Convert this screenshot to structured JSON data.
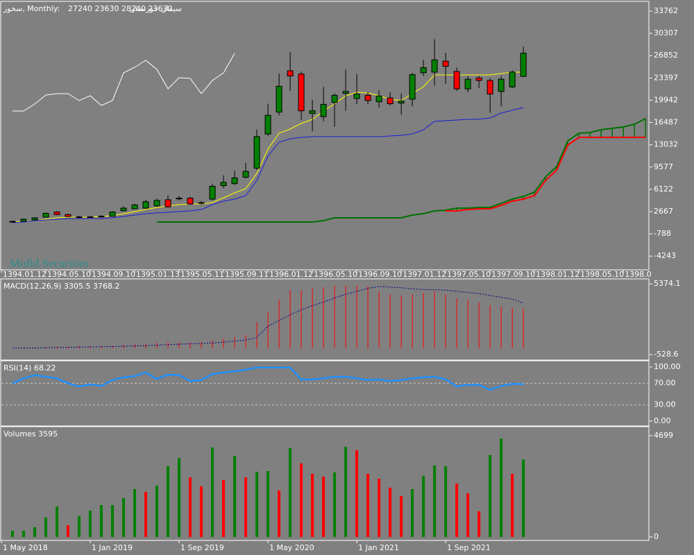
{
  "chart_data": [
    {
      "type": "candlestick",
      "title": "سخوز, Monthly:",
      "subtitle": "27240 23630 28240 23630",
      "name": "سیمان خوزستان",
      "annotation": "Mofid Securities",
      "xlim": [
        -1,
        57.3
      ],
      "ylim": [
        -6265,
        35161
      ],
      "yticks": [
        33762,
        30307,
        26852,
        23397,
        19942,
        16487,
        13032,
        9577,
        6122,
        2667,
        -788,
        -4243
      ],
      "xticks": [
        {
          "value": -1,
          "label": "1394.01.12"
        },
        {
          "value": 3,
          "label": "1394.05.10"
        },
        {
          "value": 7,
          "label": "1394.09.10"
        },
        {
          "value": 11,
          "label": "1395.01.13"
        },
        {
          "value": 15,
          "label": "1395.05.11"
        },
        {
          "value": 19,
          "label": "1395.09.11"
        },
        {
          "value": 23,
          "label": "1396.01.12"
        },
        {
          "value": 27,
          "label": "1396.05.10"
        },
        {
          "value": 31,
          "label": "1396.09.10"
        },
        {
          "value": 35,
          "label": "1397.01.12"
        },
        {
          "value": 39,
          "label": "1397.05.10"
        },
        {
          "value": 43,
          "label": "1397.09.10"
        },
        {
          "value": 47,
          "label": "1398.01.12"
        },
        {
          "value": 51,
          "label": "1398.05.10"
        },
        {
          "value": 55,
          "label": "1398.0"
        }
      ],
      "up_color": "#008000",
      "down_color": "#ff0000",
      "open": [
        1100,
        1155,
        1370,
        1800,
        2600,
        2200,
        1850,
        1800,
        1850,
        1950,
        2800,
        3100,
        3200,
        3550,
        4500,
        4700,
        4750,
        3950,
        4600,
        6700,
        7000,
        8000,
        9400,
        14700,
        18100,
        24500,
        24000,
        17900,
        17400,
        19600,
        21000,
        20200,
        20700,
        19700,
        20300,
        19500,
        20100,
        24200,
        24300,
        26000,
        24400,
        21700,
        23400,
        23000,
        21300,
        22000,
        23630
      ],
      "high": [
        1250,
        1600,
        1800,
        2550,
        2750,
        2350,
        2000,
        1950,
        2100,
        2750,
        3500,
        3900,
        4500,
        4700,
        5200,
        5100,
        5000,
        4300,
        7000,
        8300,
        9000,
        10200,
        15400,
        19400,
        24100,
        27400,
        24400,
        20000,
        22000,
        21000,
        24700,
        24000,
        21200,
        21500,
        21200,
        21000,
        24200,
        26200,
        29400,
        27300,
        25000,
        23700,
        23700,
        23400,
        23700,
        24600,
        28240
      ],
      "low": [
        1000,
        1100,
        1300,
        1750,
        2100,
        1800,
        1700,
        1700,
        1750,
        1900,
        2700,
        3000,
        3100,
        3400,
        3300,
        4400,
        3700,
        3700,
        4400,
        6300,
        6800,
        7800,
        9100,
        14400,
        17600,
        21400,
        16900,
        15100,
        16700,
        15800,
        18300,
        19300,
        19300,
        18800,
        19100,
        17700,
        19000,
        23700,
        22200,
        22500,
        21400,
        21200,
        21800,
        18000,
        19000,
        21800,
        23630
      ],
      "close": [
        1150,
        1480,
        1700,
        2400,
        2200,
        1900,
        1800,
        1850,
        1950,
        2600,
        3200,
        3700,
        4200,
        4400,
        3400,
        4750,
        3850,
        4050,
        6600,
        7200,
        7900,
        8900,
        14300,
        17600,
        22100,
        23700,
        18300,
        18300,
        19300,
        20700,
        21300,
        20900,
        19900,
        20600,
        19400,
        19800,
        23900,
        25000,
        26200,
        25200,
        21700,
        23200,
        23000,
        20900,
        23200,
        24300,
        27240
      ],
      "ma_lines": [
        {
          "color": "#ffffff",
          "values": [
            18268,
            18268,
            19344,
            20743,
            20958,
            20958,
            19882,
            20635,
            19129,
            19882,
            24186,
            25047,
            26123,
            24724,
            21711,
            23433,
            23325,
            20958,
            23002,
            24186,
            27198,
            null,
            null,
            null,
            null,
            null,
            null,
            null,
            null,
            null,
            null,
            null,
            null,
            null,
            null,
            null,
            null,
            null,
            null,
            null,
            null,
            null,
            null,
            null,
            null,
            null,
            null,
            null,
            null,
            null,
            null,
            null,
            null,
            null,
            null,
            null,
            null,
            null
          ]
        },
        {
          "color": "#ffff00",
          "values": [
            1052,
            1160,
            1267,
            1482,
            1698,
            1805,
            1805,
            1805,
            1913,
            2020,
            2343,
            2666,
            2989,
            3312,
            3527,
            3742,
            3850,
            3850,
            4065,
            4818,
            5571,
            6217,
            8584,
            12350,
            14825,
            15470,
            16331,
            16977,
            18268,
            19344,
            20635,
            21173,
            21066,
            20635,
            20097,
            19882,
            20958,
            22034,
            23863,
            23863,
            23863,
            23863,
            23863,
            23863,
            24078,
            24294,
            24294,
            null,
            null,
            null,
            null,
            null,
            null,
            null,
            null,
            null,
            null,
            null
          ]
        },
        {
          "color": "#1c1cd8",
          "values": [
            944,
            1052,
            1267,
            1375,
            1482,
            1590,
            1590,
            1590,
            1590,
            1698,
            1913,
            2128,
            2343,
            2451,
            2558,
            2666,
            2774,
            2989,
            3742,
            4280,
            4603,
            5141,
            7508,
            11274,
            13426,
            13964,
            14179,
            14287,
            14287,
            14287,
            14287,
            14287,
            14287,
            14287,
            14394,
            14502,
            14717,
            15363,
            16654,
            16762,
            16870,
            16977,
            16977,
            17192,
            17945,
            18376,
            18806,
            null,
            null,
            null,
            null,
            null,
            null,
            null,
            null,
            null,
            null,
            null
          ]
        }
      ],
      "cloud_color": "#007000",
      "span_a": {
        "color": "#007000",
        "values": [
          null,
          null,
          null,
          null,
          null,
          null,
          null,
          null,
          null,
          null,
          null,
          null,
          null,
          1052,
          1052,
          1052,
          1052,
          1052,
          1052,
          1052,
          1052,
          1052,
          1052,
          1052,
          1052,
          1052,
          1052,
          1052,
          1267,
          1698,
          1698,
          1698,
          1698,
          1698,
          1698,
          1698,
          2128,
          2343,
          2774,
          2881,
          3204,
          3204,
          3312,
          3312,
          3957,
          4603,
          5033,
          5679,
          8046,
          9660,
          13641,
          14825,
          14932,
          15363,
          15578,
          15793,
          16224,
          17084
        ]
      },
      "span_b": {
        "color": "#ff0000",
        "values": [
          null,
          null,
          null,
          null,
          null,
          null,
          null,
          null,
          null,
          null,
          null,
          null,
          null,
          null,
          null,
          null,
          null,
          null,
          null,
          null,
          null,
          null,
          null,
          null,
          null,
          null,
          null,
          null,
          null,
          null,
          null,
          null,
          null,
          null,
          null,
          null,
          null,
          null,
          null,
          2774,
          2774,
          2989,
          3096,
          3096,
          3634,
          4280,
          4603,
          5141,
          7508,
          9122,
          12996,
          14179,
          14179,
          14179,
          14179,
          14179,
          14179,
          14179
        ]
      }
    },
    {
      "type": "macd",
      "title": "MACD(12,26,9) 3305.5 3768.2",
      "xlim": [
        -1,
        57.3
      ],
      "ylim": [
        -926,
        5729
      ],
      "yticks": [
        5374.1,
        -528.6
      ],
      "series": [
        {
          "color": "#ff0000",
          "values": [
            20,
            40,
            70,
            110,
            150,
            170,
            180,
            185,
            190,
            210,
            260,
            320,
            390,
            460,
            480,
            500,
            510,
            520,
            650,
            790,
            930,
            1090,
            2200,
            3010,
            4050,
            4860,
            4860,
            4980,
            5090,
            5210,
            5210,
            5210,
            5150,
            4750,
            4510,
            4400,
            4510,
            4630,
            4750,
            4510,
            4170,
            4050,
            3820,
            3590,
            3470,
            3360,
            3305.5
          ]
        },
        {
          "color": "#000080",
          "values": [
            10,
            15,
            25,
            40,
            60,
            80,
            100,
            115,
            130,
            145,
            165,
            190,
            220,
            260,
            300,
            340,
            370,
            400,
            440,
            510,
            590,
            690,
            900,
            1850,
            2300,
            2800,
            3200,
            3550,
            3850,
            4200,
            4500,
            4750,
            5000,
            5150,
            5100,
            5050,
            4950,
            4900,
            4880,
            4850,
            4750,
            4650,
            4550,
            4400,
            4250,
            4100,
            3768.2
          ]
        }
      ]
    },
    {
      "type": "line",
      "title": "RSI(14) 68.22",
      "xlim": [
        -1,
        57.3
      ],
      "ylim": [
        -7.7,
        110.3
      ],
      "yticks": [
        {
          "value": 100,
          "label": "100.00"
        },
        {
          "value": 0,
          "label": "0.00"
        }
      ],
      "levels": [
        {
          "value": 70,
          "label": "70.00"
        },
        {
          "value": 30,
          "label": "30.00"
        }
      ],
      "color": "#1e90ff",
      "values": [
        70,
        79,
        85,
        82,
        79,
        70,
        64,
        68,
        65,
        76,
        81,
        83,
        90,
        78,
        86,
        85,
        74,
        76,
        87,
        90,
        92,
        95,
        99,
        99,
        99,
        99,
        77,
        77,
        79,
        82,
        82,
        79,
        76,
        77,
        74,
        76,
        79,
        81,
        82,
        77,
        64,
        67,
        67,
        58,
        65,
        69,
        68.22
      ]
    },
    {
      "type": "bar",
      "title": "Volumes 3595",
      "xlim": [
        -1,
        57.3
      ],
      "ylim": [
        -129,
        5084
      ],
      "yticks": [
        4699,
        0
      ],
      "xticks": [
        {
          "value": -1,
          "label": "1 May 2018"
        },
        {
          "value": 7,
          "label": "1 Jan 2019"
        },
        {
          "value": 15,
          "label": "1 Sep 2019"
        },
        {
          "value": 23,
          "label": "1 May 2020"
        },
        {
          "value": 31,
          "label": "1 Jan 2021"
        },
        {
          "value": 39,
          "label": "1 Sep 2021"
        }
      ],
      "values": [
        290,
        290,
        450,
        901,
        1416,
        547,
        965,
        1223,
        1480,
        1480,
        1802,
        2221,
        2092,
        2381,
        3283,
        3669,
        2767,
        2349,
        4152,
        2639,
        3766,
        2767,
        3025,
        3057,
        2156,
        4119,
        3411,
        2928,
        2800,
        2993,
        4184,
        4023,
        2928,
        2703,
        2285,
        1899,
        2221,
        2832,
        3315,
        3283,
        2478,
        2027,
        1191,
        3797,
        4570,
        2928,
        3595
      ],
      "colors": [
        "#008000",
        "#008000",
        "#008000",
        "#008000",
        "#008000",
        "#ff0000",
        "#008000",
        "#008000",
        "#008000",
        "#008000",
        "#008000",
        "#008000",
        "#ff0000",
        "#008000",
        "#008000",
        "#008000",
        "#ff0000",
        "#ff0000",
        "#008000",
        "#ff0000",
        "#008000",
        "#ff0000",
        "#008000",
        "#008000",
        "#ff0000",
        "#008000",
        "#ff0000",
        "#ff0000",
        "#ff0000",
        "#008000",
        "#008000",
        "#ff0000",
        "#ff0000",
        "#ff0000",
        "#ff0000",
        "#ff0000",
        "#008000",
        "#008000",
        "#008000",
        "#008000",
        "#ff0000",
        "#ff0000",
        "#ff0000",
        "#008000",
        "#008000",
        "#ff0000",
        "#008000"
      ]
    }
  ]
}
